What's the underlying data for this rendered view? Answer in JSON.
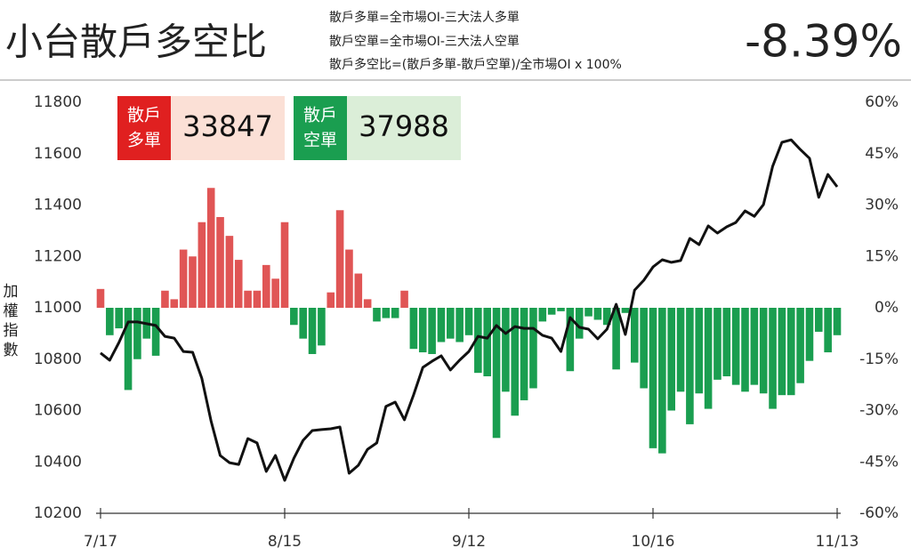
{
  "chart_data": {
    "type": "bar-line",
    "title": "小台散戶多空比",
    "notes": [
      "散戶多單=全市場OI-三大法人多單",
      "散戶空單=全市場OI-三大法人空單",
      "散戶多空比=(散戶多單-散戶空單)/全市場OI x 100%"
    ],
    "headline": "-8.39%",
    "headline_color": "#1a9e50",
    "title_color": "#1f6fb5",
    "boxes": [
      {
        "label": [
          "散戶",
          "多單"
        ],
        "value": 33847,
        "color": "#e02020",
        "bg": "#fbe0d6"
      },
      {
        "label": [
          "散戶",
          "空單"
        ],
        "value": 37988,
        "color": "#1a9e50",
        "bg": "#dbeed8"
      }
    ],
    "ylabel": "加權指數",
    "categories": [
      "7/17",
      null,
      null,
      null,
      null,
      null,
      null,
      null,
      null,
      null,
      null,
      null,
      null,
      null,
      null,
      null,
      null,
      null,
      null,
      null,
      "8/15",
      null,
      null,
      null,
      null,
      null,
      null,
      null,
      null,
      null,
      null,
      null,
      null,
      null,
      null,
      null,
      null,
      null,
      null,
      null,
      "9/12",
      null,
      null,
      null,
      null,
      null,
      null,
      null,
      null,
      null,
      null,
      null,
      null,
      null,
      null,
      null,
      null,
      null,
      null,
      null,
      "10/16",
      null,
      null,
      null,
      null,
      null,
      null,
      null,
      null,
      null,
      null,
      null,
      null,
      null,
      null,
      null,
      null,
      null,
      null,
      null,
      "11/13"
    ],
    "series": [
      {
        "type": "bar",
        "axis": "y2",
        "color_positive": "#e05555",
        "color_negative": "#1a9e50",
        "values": [
          5.5,
          -8,
          -6,
          -24,
          -15,
          -9,
          -14,
          5,
          2.5,
          17,
          15,
          25,
          35,
          26.5,
          21,
          14,
          5,
          5,
          12.5,
          8.5,
          25,
          -5,
          -9,
          -13.5,
          -11,
          4.5,
          28.5,
          17,
          10,
          2.5,
          -4,
          -3,
          -3,
          5,
          -12,
          -13,
          -13.5,
          -10,
          -9,
          -10,
          -8,
          -19,
          -20,
          -38,
          -24.5,
          -31.5,
          -27,
          -23.5,
          -4,
          -2,
          -1,
          -18.5,
          -9,
          -2.5,
          -3.5,
          -5,
          -18,
          -1.5,
          -16,
          -23.5,
          -41,
          -42.5,
          -30,
          -24.5,
          -34,
          -25,
          -29.5,
          -21,
          -20,
          -22.5,
          -24.5,
          -22.5,
          -25,
          -29.5,
          -25.5,
          -25.5,
          -22,
          -15.5,
          -7,
          -13,
          -8
        ]
      },
      {
        "type": "line",
        "axis": "y",
        "color": "#111111",
        "values": [
          10824,
          10796,
          10865,
          10945,
          10945,
          10938,
          10931,
          10889,
          10882,
          10830,
          10827,
          10726,
          10560,
          10425,
          10397,
          10390,
          10491,
          10474,
          10363,
          10425,
          10328,
          10415,
          10484,
          10522,
          10526,
          10529,
          10536,
          10356,
          10387,
          10449,
          10474,
          10616,
          10633,
          10564,
          10661,
          10768,
          10792,
          10813,
          10758,
          10796,
          10830,
          10889,
          10882,
          10931,
          10900,
          10927,
          10920,
          10920,
          10893,
          10882,
          10830,
          10962,
          10924,
          10917,
          10879,
          10917,
          11014,
          10896,
          11069,
          11107,
          11159,
          11187,
          11177,
          11184,
          11270,
          11246,
          11319,
          11291,
          11315,
          11332,
          11377,
          11356,
          11402,
          11551,
          11644,
          11654,
          11616,
          11582,
          11430,
          11519,
          11471
        ]
      }
    ],
    "ylim": [
      10200,
      11800
    ],
    "yticks": [
      10200,
      10400,
      10600,
      10800,
      11000,
      11200,
      11400,
      11600,
      11800
    ],
    "y2lim": [
      -60,
      60
    ],
    "y2ticks": [
      {
        "value": -60,
        "label": "-60%"
      },
      {
        "value": -45,
        "label": "-45%"
      },
      {
        "value": -30,
        "label": "-30%"
      },
      {
        "value": -15,
        "label": "-15%"
      },
      {
        "value": 0,
        "label": "0%"
      },
      {
        "value": 15,
        "label": "15%"
      },
      {
        "value": 30,
        "label": "30%"
      },
      {
        "value": 45,
        "label": "45%"
      },
      {
        "value": 60,
        "label": "60%"
      }
    ]
  }
}
